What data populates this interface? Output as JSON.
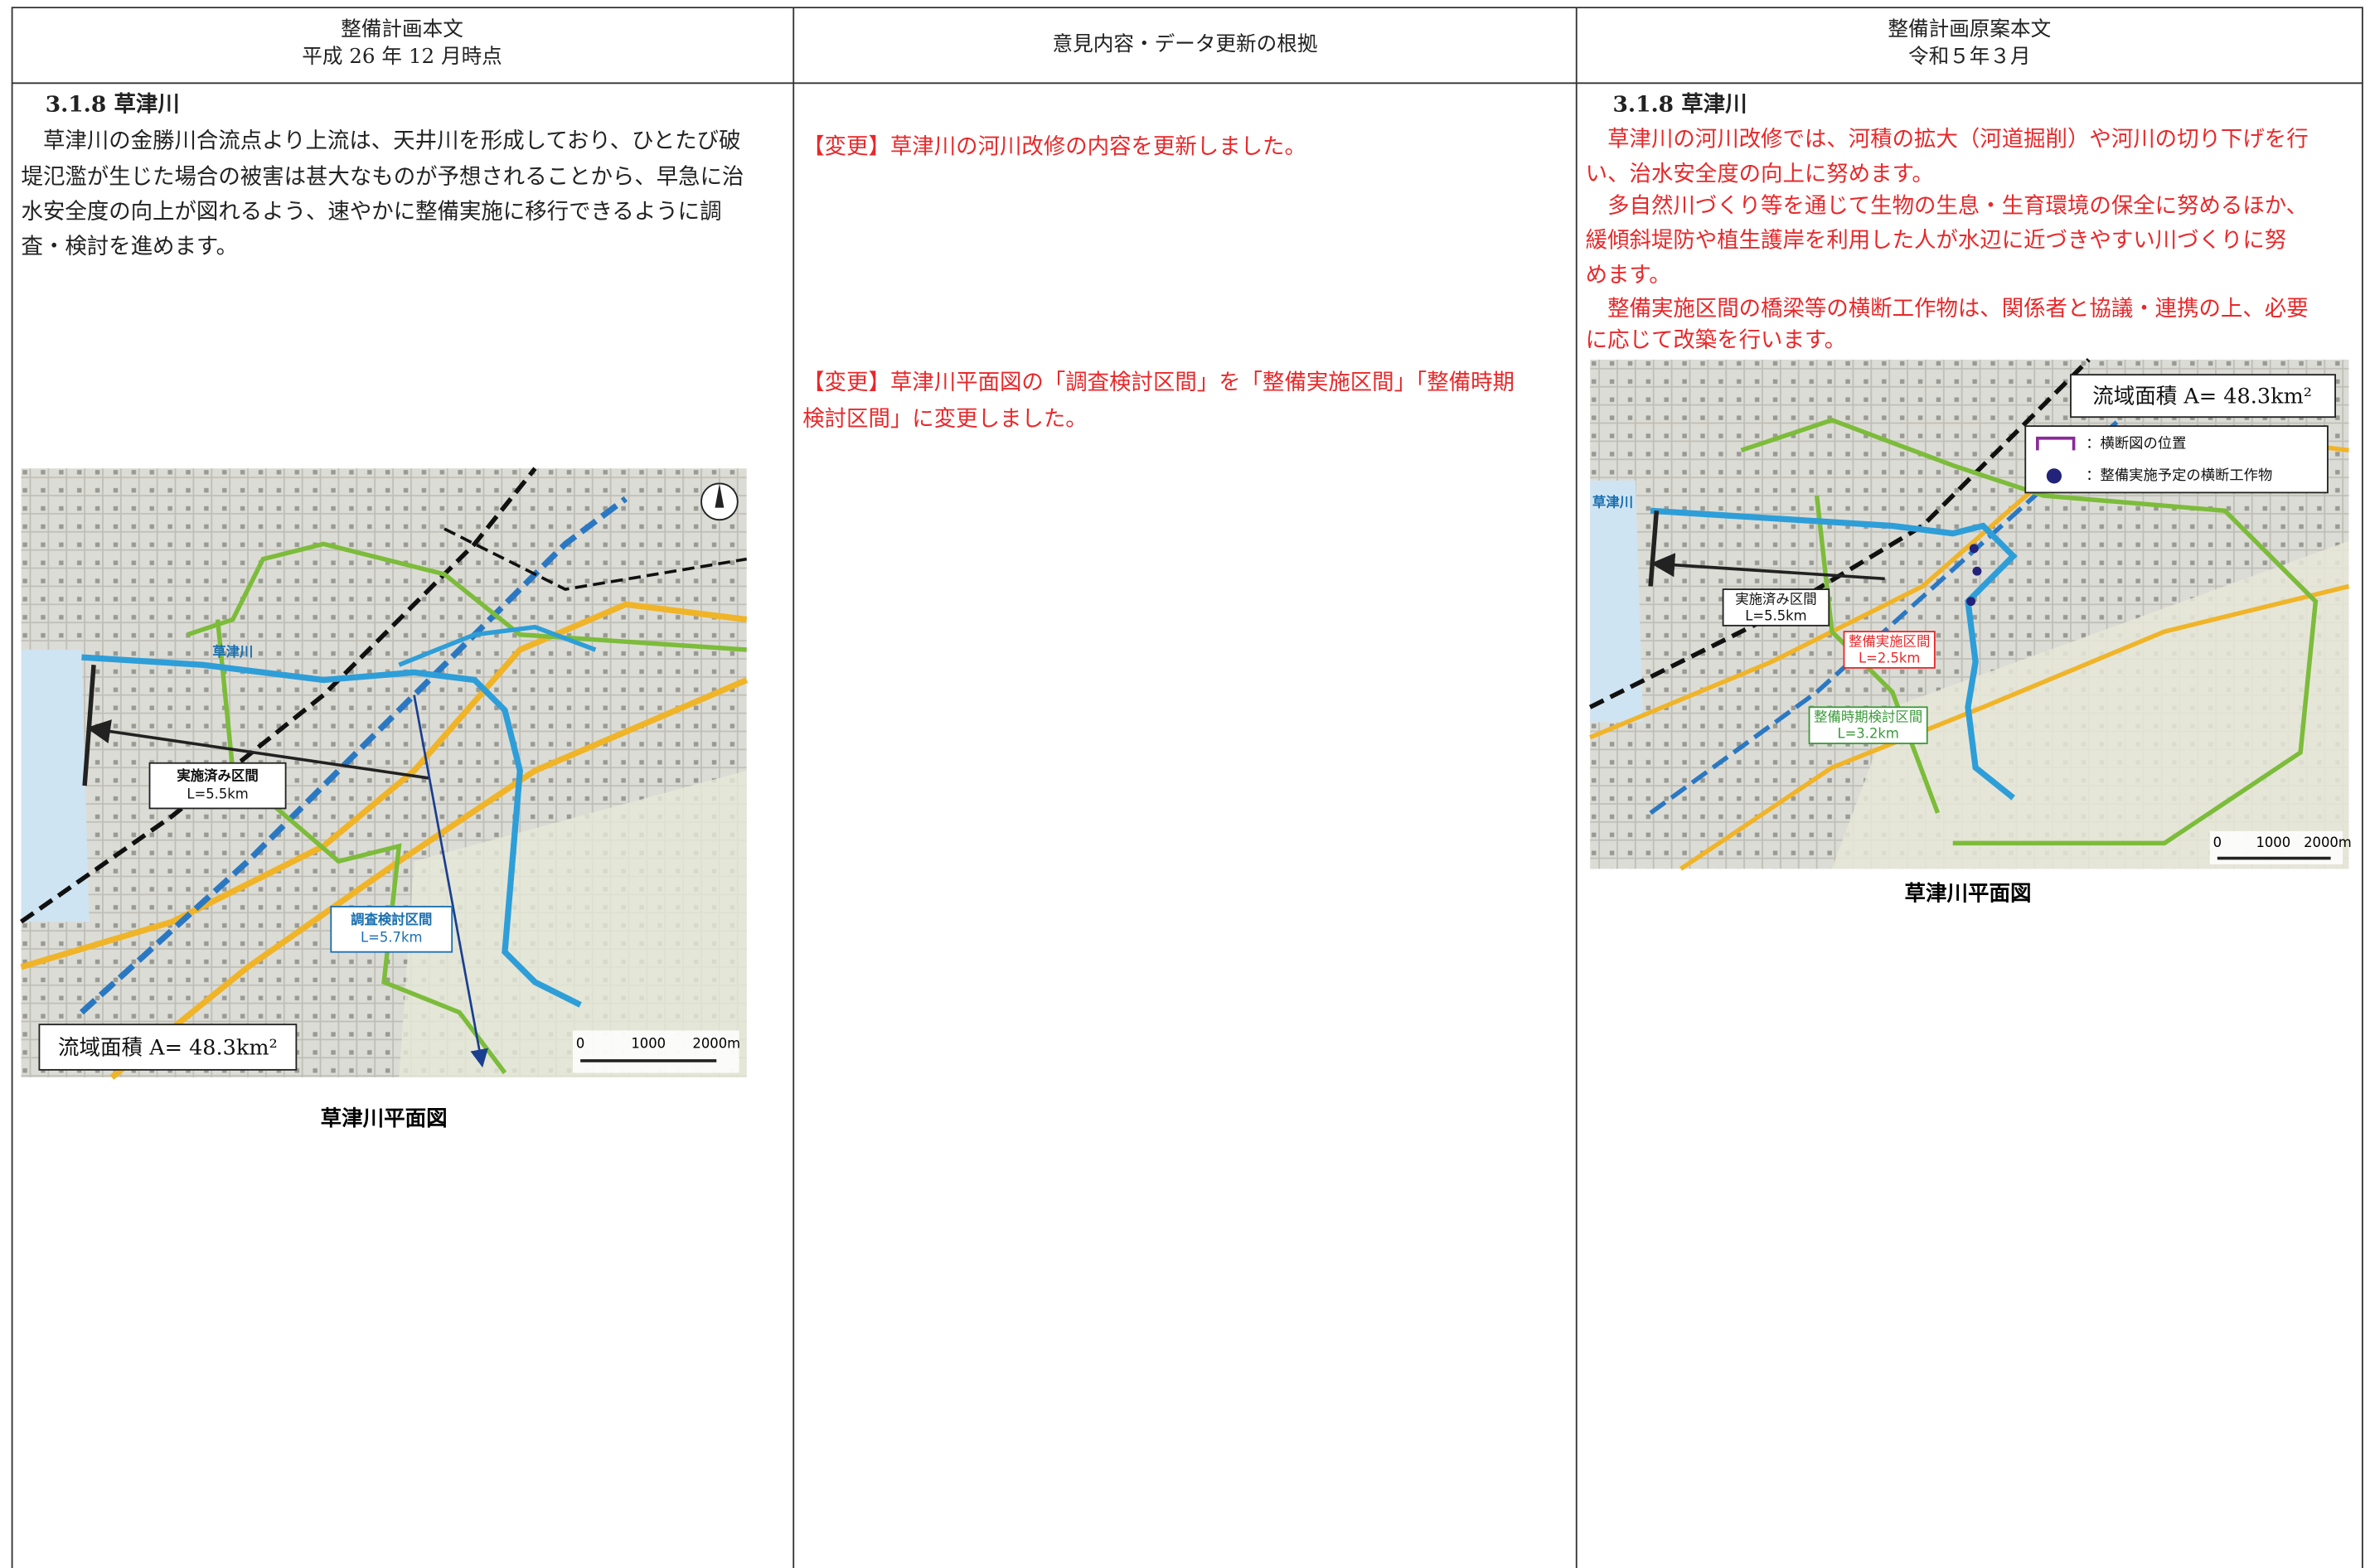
{
  "header": {
    "col1": {
      "title": "整備計画本文",
      "subtitle": "平成 26 年 12 月時点"
    },
    "col2": {
      "title": "意見内容・データ更新の根拠"
    },
    "col3": {
      "title": "整備計画原案本文",
      "subtitle": "令和５年３月"
    }
  },
  "current": {
    "heading": "3.1.8 草津川",
    "lines": [
      "　草津川の金勝川合流点より上流は、天井川を形成しており、ひとたび破",
      "堤氾濫が生じた場合の被害は甚大なものが予想されることから、早急に治",
      "水安全度の向上が図れるよう、速やかに整備実施に移行できるように調",
      "査・検討を進めます。"
    ],
    "map": {
      "area": "流域面積 A= 48.3km²",
      "done_section": "実施済み区間",
      "done_length": "L=5.5km",
      "study_section": "調査検討区間",
      "study_length": "L=5.7km",
      "river": "草津川",
      "scale": [
        "0",
        "1000",
        "2000m"
      ]
    },
    "caption": "草津川平面図"
  },
  "basis": {
    "lines": [
      "【変更】草津川の河川改修の内容を更新しました。",
      "【変更】草津川平面図の「調査検討区間」を「整備実施区間」「整備時期",
      "検討区間」に変更しました。"
    ]
  },
  "draft": {
    "heading": "3.1.8 草津川",
    "lines": [
      "　草津川の河川改修では、河積の拡大（河道掘削）や河川の切り下げを行",
      "い、治水安全度の向上に努めます。",
      "　多自然川づくり等を通じて生物の生息・生育環境の保全に努めるほか、",
      "緩傾斜堤防や植生護岸を利用した人が水辺に近づきやすい川づくりに努",
      "めます。",
      "　整備実施区間の橋梁等の横断工作物は、関係者と協議・連携の上、必要",
      "に応じて改築を行います。"
    ],
    "map": {
      "area": "流域面積 A= 48.3km²",
      "legend": [
        "：横断図の位置",
        "：整備実施予定の横断工作物"
      ],
      "done_section": "実施済み区間",
      "done_length": "L=5.5km",
      "impl_section": "整備実施区間",
      "impl_length": "L=2.5km",
      "timing_section": "整備時期検討区間",
      "timing_length": "L=3.2km",
      "river": "草津川",
      "scale": [
        "0",
        "1000",
        "2000m"
      ]
    },
    "caption": "草津川平面図"
  }
}
